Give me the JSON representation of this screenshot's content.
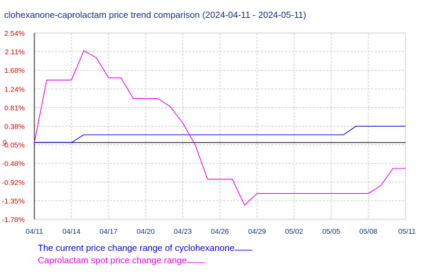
{
  "chart_data": {
    "type": "line",
    "title": "clohexanone-caprolactam price trend comparison (2024-04-11 - 2024-05-11)",
    "xlabel": "",
    "ylabel": "",
    "x_ticks": [
      "04/11",
      "04/14",
      "04/17",
      "04/20",
      "04/23",
      "04/26",
      "04/29",
      "05/02",
      "05/05",
      "05/08",
      "05/11"
    ],
    "y_ticks": [
      "2.54%",
      "2.11%",
      "1.68%",
      "1.24%",
      "0.81%",
      "0.38%",
      "-0.05%",
      "-0.48%",
      "-0.92%",
      "-1.35%",
      "-1.78%"
    ],
    "y_zero_label": "0",
    "ylim": [
      -1.78,
      2.54
    ],
    "xlim": [
      0,
      30
    ],
    "grid": true,
    "colors": {
      "series1": "#0000cc",
      "series2": "#e000e0",
      "axis": "#000000",
      "grid": "#c8c8c8"
    },
    "series": [
      {
        "name": "The current price change range of cyclohexanone",
        "x": [
          0,
          3,
          4,
          25,
          26,
          30
        ],
        "values": [
          0,
          0,
          0.18,
          0.18,
          0.38,
          0.38
        ]
      },
      {
        "name": "Caprolactam spot price change range",
        "x": [
          0,
          1,
          3,
          4,
          5,
          6,
          7,
          8,
          9,
          10,
          11,
          12,
          13,
          14,
          15,
          16,
          17,
          18,
          19,
          20,
          21,
          22,
          23,
          24,
          25,
          26,
          27,
          28,
          29,
          30
        ],
        "values": [
          0,
          1.45,
          1.45,
          2.13,
          1.97,
          1.5,
          1.5,
          1.02,
          1.02,
          1.02,
          0.83,
          0.45,
          -0.05,
          -0.85,
          -0.85,
          -0.85,
          -1.45,
          -1.18,
          -1.18,
          -1.18,
          -1.18,
          -1.18,
          -1.18,
          -1.18,
          -1.18,
          -1.18,
          -1.18,
          -1.0,
          -0.6,
          -0.6
        ]
      }
    ]
  }
}
